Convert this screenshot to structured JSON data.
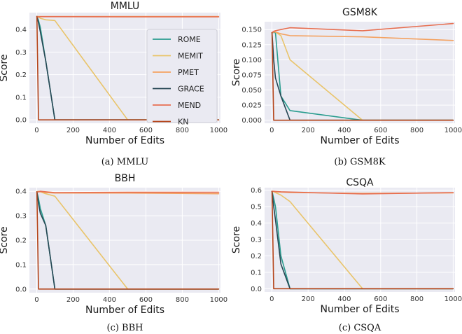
{
  "chart_data": [
    {
      "type": "line",
      "caption": "(a) MMLU",
      "title": "MMLU",
      "xlabel": "Number of Edits",
      "ylabel": "Score",
      "xlim": [
        -40,
        1010
      ],
      "ylim": [
        -0.015,
        0.475
      ],
      "xticks": [
        0,
        200,
        400,
        600,
        800,
        1000
      ],
      "xtick_labels": [
        "0",
        "200",
        "400",
        "600",
        "800",
        "1000"
      ],
      "yticks": [
        0.0,
        0.1,
        0.2,
        0.3,
        0.4
      ],
      "ytick_labels": [
        "0.0",
        "0.1",
        "0.2",
        "0.3",
        "0.4"
      ],
      "grid": true,
      "legend_position": "right",
      "series": [
        {
          "name": "ROME",
          "color": "#2a9d8f",
          "x": [
            1,
            10,
            20,
            50,
            100,
            500,
            1000
          ],
          "y": [
            0.458,
            0.44,
            0.41,
            0.26,
            0.0,
            0.0,
            0.0
          ]
        },
        {
          "name": "MEMIT",
          "color": "#e9c46a",
          "x": [
            1,
            10,
            20,
            50,
            100,
            500,
            1000
          ],
          "y": [
            0.458,
            0.455,
            0.45,
            0.443,
            0.44,
            0.0,
            0.0
          ]
        },
        {
          "name": "PMET",
          "color": "#f4a261",
          "x": [
            1,
            10,
            20,
            50,
            100,
            500,
            1000
          ],
          "y": [
            0.458,
            0.458,
            0.458,
            0.458,
            0.458,
            0.458,
            0.458
          ]
        },
        {
          "name": "GRACE",
          "color": "#264653",
          "x": [
            1,
            10,
            20,
            50,
            100,
            500,
            1000
          ],
          "y": [
            0.458,
            0.43,
            0.39,
            0.26,
            0.0,
            0.0,
            0.0
          ]
        },
        {
          "name": "MEND",
          "color": "#e76f51",
          "x": [
            1,
            10,
            20,
            50,
            100,
            500,
            1000
          ],
          "y": [
            0.455,
            0.456,
            0.457,
            0.457,
            0.457,
            0.456,
            0.456
          ]
        },
        {
          "name": "KN",
          "color": "#b5451b",
          "x": [
            1,
            10,
            20,
            50,
            100,
            500,
            1000
          ],
          "y": [
            0.458,
            0.0,
            0.0,
            0.0,
            0.0,
            0.0,
            0.0
          ]
        }
      ]
    },
    {
      "type": "line",
      "caption": "(b) GSM8K",
      "title": "GSM8K",
      "xlabel": "Number of Edits",
      "ylabel": "Score",
      "xlim": [
        -40,
        1010
      ],
      "ylim": [
        -0.005,
        0.163
      ],
      "xticks": [
        0,
        200,
        400,
        600,
        800,
        1000
      ],
      "xtick_labels": [
        "0",
        "200",
        "400",
        "600",
        "800",
        "1000"
      ],
      "yticks": [
        0.0,
        0.025,
        0.05,
        0.075,
        0.1,
        0.125,
        0.15
      ],
      "ytick_labels": [
        "0.000",
        "0.025",
        "0.050",
        "0.075",
        "0.100",
        "0.125",
        "0.150"
      ],
      "grid": true,
      "series": [
        {
          "name": "ROME",
          "color": "#2a9d8f",
          "x": [
            1,
            10,
            20,
            50,
            100,
            500,
            1000
          ],
          "y": [
            0.145,
            0.145,
            0.145,
            0.04,
            0.016,
            0.0,
            0.0
          ]
        },
        {
          "name": "MEMIT",
          "color": "#e9c46a",
          "x": [
            1,
            10,
            20,
            50,
            100,
            500,
            1000
          ],
          "y": [
            0.145,
            0.146,
            0.146,
            0.14,
            0.1,
            0.0,
            0.0
          ]
        },
        {
          "name": "PMET",
          "color": "#f4a261",
          "x": [
            1,
            10,
            20,
            50,
            100,
            500,
            1000
          ],
          "y": [
            0.145,
            0.146,
            0.146,
            0.143,
            0.14,
            0.138,
            0.132
          ]
        },
        {
          "name": "GRACE",
          "color": "#264653",
          "x": [
            1,
            10,
            20,
            50,
            100,
            500,
            1000
          ],
          "y": [
            0.145,
            0.1,
            0.07,
            0.04,
            0.0,
            0.0,
            0.0
          ]
        },
        {
          "name": "MEND",
          "color": "#e76f51",
          "x": [
            1,
            10,
            20,
            50,
            100,
            500,
            1000
          ],
          "y": [
            0.145,
            0.147,
            0.148,
            0.15,
            0.153,
            0.148,
            0.16
          ]
        },
        {
          "name": "KN",
          "color": "#b5451b",
          "x": [
            1,
            10,
            20,
            50,
            100,
            500,
            1000
          ],
          "y": [
            0.145,
            0.0,
            0.0,
            0.0,
            0.0,
            0.0,
            0.0
          ]
        }
      ]
    },
    {
      "type": "line",
      "caption": "(c) BBH",
      "title": "BBH",
      "xlabel": "Number of Edits",
      "ylabel": "Score",
      "xlim": [
        -40,
        1010
      ],
      "ylim": [
        -0.015,
        0.415
      ],
      "xticks": [
        0,
        200,
        400,
        600,
        800,
        1000
      ],
      "xtick_labels": [
        "0",
        "200",
        "400",
        "600",
        "800",
        "1000"
      ],
      "yticks": [
        0.0,
        0.1,
        0.2,
        0.3,
        0.4
      ],
      "ytick_labels": [
        "0.0",
        "0.1",
        "0.2",
        "0.3",
        "0.4"
      ],
      "grid": true,
      "series": [
        {
          "name": "ROME",
          "color": "#2a9d8f",
          "x": [
            1,
            10,
            20,
            50,
            100,
            500,
            1000
          ],
          "y": [
            0.398,
            0.37,
            0.33,
            0.26,
            0.0,
            0.0,
            0.0
          ]
        },
        {
          "name": "MEMIT",
          "color": "#e9c46a",
          "x": [
            1,
            10,
            20,
            50,
            100,
            500,
            1000
          ],
          "y": [
            0.398,
            0.4,
            0.398,
            0.39,
            0.38,
            0.0,
            0.0
          ]
        },
        {
          "name": "PMET",
          "color": "#f4a261",
          "x": [
            1,
            10,
            20,
            50,
            100,
            500,
            1000
          ],
          "y": [
            0.398,
            0.398,
            0.398,
            0.395,
            0.393,
            0.393,
            0.39
          ]
        },
        {
          "name": "GRACE",
          "color": "#264653",
          "x": [
            1,
            10,
            20,
            50,
            100,
            500,
            1000
          ],
          "y": [
            0.398,
            0.35,
            0.31,
            0.26,
            0.0,
            0.0,
            0.0
          ]
        },
        {
          "name": "MEND",
          "color": "#e76f51",
          "x": [
            1,
            10,
            20,
            50,
            100,
            500,
            1000
          ],
          "y": [
            0.397,
            0.398,
            0.4,
            0.398,
            0.395,
            0.396,
            0.396
          ]
        },
        {
          "name": "KN",
          "color": "#b5451b",
          "x": [
            1,
            10,
            20,
            50,
            100,
            500,
            1000
          ],
          "y": [
            0.398,
            0.0,
            0.0,
            0.0,
            0.0,
            0.0,
            0.0
          ]
        }
      ]
    },
    {
      "type": "line",
      "caption": "(c) CSQA",
      "title": "CSQA",
      "xlabel": "Number of Edits",
      "ylabel": "Score",
      "xlim": [
        -40,
        1010
      ],
      "ylim": [
        -0.02,
        0.615
      ],
      "xticks": [
        0,
        200,
        400,
        600,
        800,
        1000
      ],
      "xtick_labels": [
        "0",
        "200",
        "400",
        "600",
        "800",
        "1000"
      ],
      "yticks": [
        0.0,
        0.1,
        0.2,
        0.3,
        0.4,
        0.5,
        0.6
      ],
      "ytick_labels": [
        "0.0",
        "0.1",
        "0.2",
        "0.3",
        "0.4",
        "0.5",
        "0.6"
      ],
      "grid": true,
      "series": [
        {
          "name": "ROME",
          "color": "#2a9d8f",
          "x": [
            1,
            10,
            20,
            50,
            100,
            500,
            1000
          ],
          "y": [
            0.593,
            0.55,
            0.5,
            0.2,
            0.0,
            0.0,
            0.0
          ]
        },
        {
          "name": "MEMIT",
          "color": "#e9c46a",
          "x": [
            1,
            10,
            20,
            50,
            100,
            500,
            1000
          ],
          "y": [
            0.593,
            0.59,
            0.585,
            0.57,
            0.53,
            0.0,
            0.0
          ]
        },
        {
          "name": "PMET",
          "color": "#f4a261",
          "x": [
            1,
            10,
            20,
            50,
            100,
            500,
            1000
          ],
          "y": [
            0.593,
            0.593,
            0.59,
            0.588,
            0.585,
            0.58,
            0.583
          ]
        },
        {
          "name": "GRACE",
          "color": "#264653",
          "x": [
            1,
            10,
            20,
            50,
            100,
            500,
            1000
          ],
          "y": [
            0.593,
            0.5,
            0.42,
            0.15,
            0.0,
            0.0,
            0.0
          ]
        },
        {
          "name": "MEND",
          "color": "#e76f51",
          "x": [
            1,
            10,
            20,
            50,
            100,
            500,
            1000
          ],
          "y": [
            0.593,
            0.593,
            0.592,
            0.59,
            0.588,
            0.577,
            0.585
          ]
        },
        {
          "name": "KN",
          "color": "#b5451b",
          "x": [
            1,
            10,
            20,
            50,
            100,
            500,
            1000
          ],
          "y": [
            0.593,
            0.0,
            0.0,
            0.0,
            0.0,
            0.0,
            0.0
          ]
        }
      ]
    }
  ]
}
